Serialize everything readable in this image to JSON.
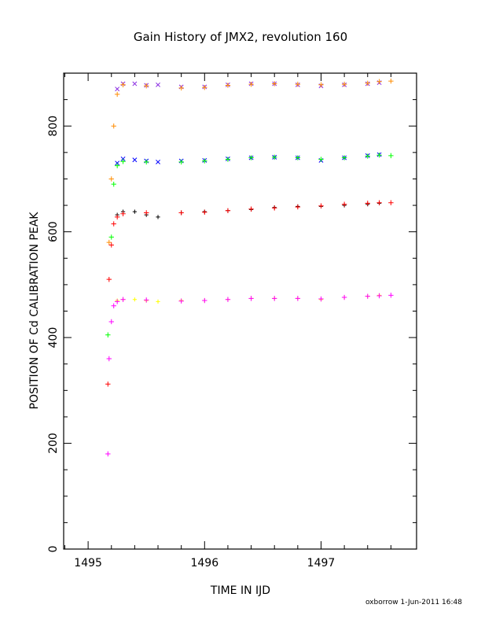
{
  "chart_data": {
    "type": "scatter",
    "title": "Gain History of JMX2, revolution 160",
    "xlabel": "TIME IN IJD",
    "ylabel": "POSITION OF Cd CALIBRATION PEAK",
    "xlim": [
      1494.79,
      1497.82
    ],
    "ylim": [
      0,
      900
    ],
    "xticks": [
      "1495",
      "1496",
      "1497"
    ],
    "yticks": [
      "0",
      "200",
      "400",
      "600",
      "800"
    ],
    "grid": false,
    "legend": "none",
    "footer": "oxborrow   1-Jun-2011  16:48",
    "series": [
      {
        "marker": "x",
        "color": "#8a2be2",
        "role": "raw",
        "x": [
          1495.25,
          1495.3,
          1495.4,
          1495.5,
          1495.6,
          1495.8,
          1496.0,
          1496.2,
          1496.4,
          1496.6,
          1496.8,
          1497.0,
          1497.2,
          1497.4,
          1497.5
        ],
        "y": [
          870,
          880,
          880,
          877,
          878,
          874,
          874,
          878,
          880,
          880,
          878,
          876,
          878,
          880,
          882
        ]
      },
      {
        "marker": "+",
        "color": "#ff8c00",
        "role": "fit",
        "x": [
          1495.18,
          1495.2,
          1495.22,
          1495.25,
          1495.3,
          1495.5,
          1495.8,
          1496.0,
          1496.2,
          1496.4,
          1496.6,
          1496.8,
          1497.0,
          1497.2,
          1497.4,
          1497.5,
          1497.6
        ],
        "y": [
          580,
          700,
          800,
          860,
          878,
          876,
          872,
          873,
          877,
          879,
          880,
          879,
          878,
          879,
          881,
          884,
          885
        ]
      },
      {
        "marker": "x",
        "color": "#0000ff",
        "role": "raw",
        "x": [
          1495.25,
          1495.3,
          1495.4,
          1495.5,
          1495.6,
          1495.8,
          1496.0,
          1496.2,
          1496.4,
          1496.6,
          1496.8,
          1497.0,
          1497.2,
          1497.4,
          1497.5
        ],
        "y": [
          730,
          738,
          736,
          734,
          732,
          734,
          735,
          738,
          740,
          741,
          740,
          735,
          740,
          744,
          746
        ]
      },
      {
        "marker": "+",
        "color": "#00ff00",
        "role": "fit",
        "x": [
          1495.17,
          1495.2,
          1495.22,
          1495.25,
          1495.3,
          1495.5,
          1495.8,
          1496.0,
          1496.2,
          1496.4,
          1496.6,
          1496.8,
          1497.0,
          1497.2,
          1497.4,
          1497.5,
          1497.6
        ],
        "y": [
          405,
          590,
          690,
          725,
          733,
          732,
          732,
          734,
          737,
          740,
          741,
          740,
          737,
          740,
          743,
          745,
          744
        ]
      },
      {
        "marker": "+",
        "color": "#000000",
        "role": "raw",
        "x": [
          1495.25,
          1495.3,
          1495.4,
          1495.5,
          1495.6,
          1495.8,
          1496.0,
          1496.2,
          1496.4,
          1496.6,
          1496.8,
          1497.0,
          1497.2,
          1497.4,
          1497.5
        ],
        "y": [
          632,
          638,
          638,
          632,
          628,
          636,
          638,
          640,
          642,
          646,
          648,
          648,
          650,
          652,
          654
        ]
      },
      {
        "marker": "+",
        "color": "#ff0000",
        "role": "fit",
        "x": [
          1495.17,
          1495.18,
          1495.2,
          1495.22,
          1495.25,
          1495.3,
          1495.5,
          1495.8,
          1496.0,
          1496.2,
          1496.4,
          1496.6,
          1496.8,
          1497.0,
          1497.2,
          1497.4,
          1497.5,
          1497.6
        ],
        "y": [
          312,
          510,
          575,
          615,
          628,
          634,
          636,
          636,
          637,
          640,
          643,
          645,
          647,
          649,
          652,
          654,
          655,
          655
        ]
      },
      {
        "marker": "+",
        "color": "#ffff00",
        "role": "raw",
        "x": [
          1495.25,
          1495.3,
          1495.4,
          1495.5,
          1495.6,
          1495.8,
          1496.0,
          1496.2,
          1496.4,
          1496.6,
          1496.8,
          1497.0,
          1497.2,
          1497.4,
          1497.5
        ],
        "y": [
          470,
          472,
          472,
          470,
          468,
          470,
          470,
          472,
          474,
          474,
          474,
          472,
          476,
          478,
          480
        ]
      },
      {
        "marker": "+",
        "color": "#ff00ff",
        "role": "fit",
        "x": [
          1495.17,
          1495.18,
          1495.2,
          1495.22,
          1495.25,
          1495.3,
          1495.5,
          1495.8,
          1496.0,
          1496.2,
          1496.4,
          1496.6,
          1496.8,
          1497.0,
          1497.2,
          1497.4,
          1497.5,
          1497.6
        ],
        "y": [
          180,
          360,
          430,
          460,
          468,
          472,
          471,
          469,
          470,
          472,
          474,
          474,
          474,
          473,
          476,
          478,
          479,
          480
        ]
      }
    ]
  }
}
